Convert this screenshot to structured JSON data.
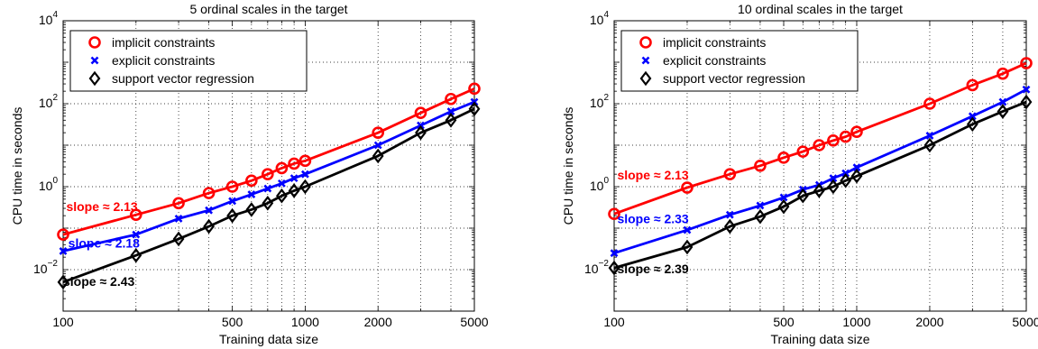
{
  "chart_data": [
    {
      "type": "line",
      "title": "5 ordinal scales in the target",
      "xlabel": "Training data size",
      "ylabel": "CPU time in seconds",
      "xscale": "log",
      "yscale": "log",
      "xlim": [
        100,
        5000
      ],
      "ylim": [
        0.001,
        10000
      ],
      "xticks": [
        100,
        500,
        1000,
        2000,
        5000
      ],
      "xtick_labels": [
        "100",
        "500",
        "1000",
        "2000",
        "5000"
      ],
      "yticks": [
        0.01,
        1,
        100,
        10000
      ],
      "ytick_labels": [
        {
          "base": "10",
          "exp": "−2"
        },
        {
          "base": "10",
          "exp": "0"
        },
        {
          "base": "10",
          "exp": "2"
        },
        {
          "base": "10",
          "exp": "4"
        }
      ],
      "grid": true,
      "legend": "top-left",
      "series": [
        {
          "name": "implicit constraints",
          "color": "#ff0000",
          "marker": "circle",
          "x": [
            100,
            200,
            300,
            400,
            500,
            600,
            700,
            800,
            900,
            1000,
            2000,
            3000,
            4000,
            5000
          ],
          "y": [
            0.07,
            0.21,
            0.4,
            0.7,
            1.0,
            1.4,
            2.0,
            2.8,
            3.6,
            4.2,
            20,
            60,
            130,
            230
          ]
        },
        {
          "name": "explicit constraints",
          "color": "#0000ff",
          "marker": "x",
          "x": [
            100,
            200,
            300,
            400,
            500,
            600,
            700,
            800,
            900,
            1000,
            2000,
            3000,
            4000,
            5000
          ],
          "y": [
            0.028,
            0.07,
            0.17,
            0.27,
            0.45,
            0.65,
            0.9,
            1.2,
            1.6,
            2.0,
            10,
            30,
            65,
            110
          ]
        },
        {
          "name": "support vector regression",
          "color": "#000000",
          "marker": "diamond",
          "x": [
            100,
            200,
            300,
            400,
            500,
            600,
            700,
            800,
            900,
            1000,
            2000,
            3000,
            4000,
            5000
          ],
          "y": [
            0.005,
            0.022,
            0.055,
            0.11,
            0.2,
            0.28,
            0.4,
            0.6,
            0.8,
            1.0,
            5.5,
            20,
            40,
            75
          ]
        }
      ],
      "annotations": [
        {
          "text": "slope ≈ 2.13",
          "color": "#ff0000",
          "at": [
            103,
            0.33
          ]
        },
        {
          "text": "slope ≈ 2.18",
          "color": "#0000ff",
          "at": [
            105,
            0.044
          ]
        },
        {
          "text": "slope ≈ 2.43",
          "color": "#000000",
          "at": [
            100,
            0.0052
          ]
        }
      ]
    },
    {
      "type": "line",
      "title": "10 ordinal scales in the target",
      "xlabel": "Training data size",
      "ylabel": "CPU time in seconds",
      "xscale": "log",
      "yscale": "log",
      "xlim": [
        100,
        5000
      ],
      "ylim": [
        0.001,
        10000
      ],
      "xticks": [
        100,
        500,
        1000,
        2000,
        5000
      ],
      "xtick_labels": [
        "100",
        "500",
        "1000",
        "2000",
        "5000"
      ],
      "yticks": [
        0.01,
        1,
        100,
        10000
      ],
      "ytick_labels": [
        {
          "base": "10",
          "exp": "−2"
        },
        {
          "base": "10",
          "exp": "0"
        },
        {
          "base": "10",
          "exp": "2"
        },
        {
          "base": "10",
          "exp": "4"
        }
      ],
      "grid": true,
      "legend": "top-left",
      "series": [
        {
          "name": "implicit constraints",
          "color": "#ff0000",
          "marker": "circle",
          "x": [
            100,
            200,
            300,
            400,
            500,
            600,
            700,
            800,
            900,
            1000,
            2000,
            3000,
            4000,
            5000
          ],
          "y": [
            0.22,
            0.95,
            2.0,
            3.2,
            5.0,
            7.0,
            10,
            13,
            16,
            21,
            100,
            280,
            530,
            950
          ]
        },
        {
          "name": "explicit constraints",
          "color": "#0000ff",
          "marker": "x",
          "x": [
            100,
            200,
            300,
            400,
            500,
            600,
            700,
            800,
            900,
            1000,
            2000,
            3000,
            4000,
            5000
          ],
          "y": [
            0.025,
            0.09,
            0.21,
            0.35,
            0.55,
            0.85,
            1.1,
            1.6,
            2.1,
            2.9,
            17,
            50,
            110,
            220
          ]
        },
        {
          "name": "support vector regression",
          "color": "#000000",
          "marker": "diamond",
          "x": [
            100,
            200,
            300,
            400,
            500,
            600,
            700,
            800,
            900,
            1000,
            2000,
            3000,
            4000,
            5000
          ],
          "y": [
            0.011,
            0.035,
            0.11,
            0.19,
            0.33,
            0.6,
            0.8,
            1.0,
            1.4,
            1.8,
            10,
            32,
            65,
            110
          ]
        }
      ],
      "annotations": [
        {
          "text": "slope ≈ 2.13",
          "color": "#ff0000",
          "at": [
            103,
            1.9
          ]
        },
        {
          "text": "slope ≈ 2.33",
          "color": "#0000ff",
          "at": [
            103,
            0.17
          ]
        },
        {
          "text": "slope ≈ 2.39",
          "color": "#000000",
          "at": [
            103,
            0.0105
          ]
        }
      ]
    }
  ]
}
